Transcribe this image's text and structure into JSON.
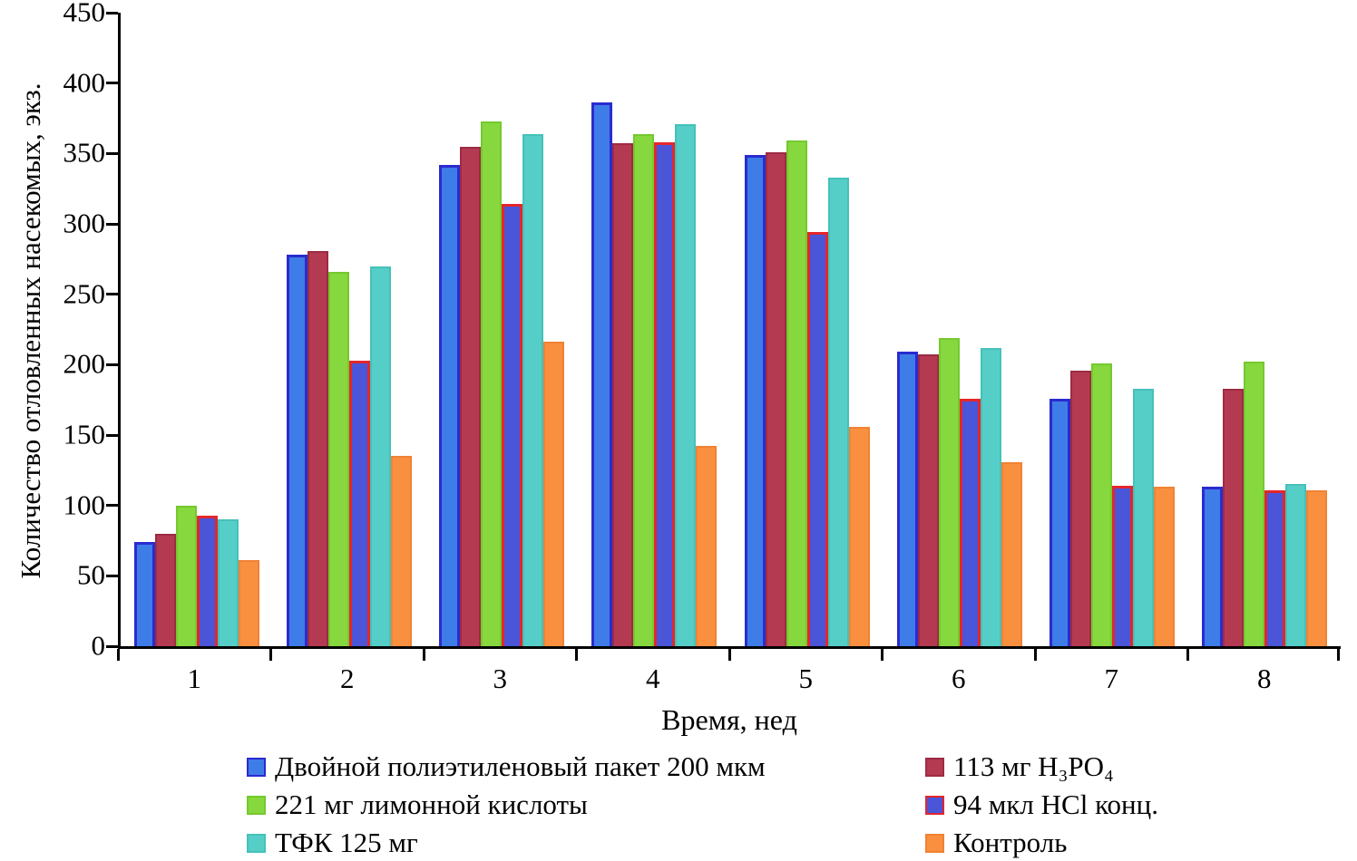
{
  "chart_data": {
    "type": "bar",
    "title": "",
    "xlabel": "Время, нед",
    "ylabel": "Количество отловленных насекомых, экз.",
    "categories": [
      "1",
      "2",
      "3",
      "4",
      "5",
      "6",
      "7",
      "8"
    ],
    "series": [
      {
        "name": "Двойной полиэтиленовый пакет 200 мкм",
        "fill": "#3E7CE8",
        "stroke": "#2B2BCF",
        "stroke_width": 3,
        "values": [
          74,
          278,
          342,
          386,
          349,
          209,
          176,
          113
        ]
      },
      {
        "name": "113 мг H₃PO₄",
        "fill": "#B43A52",
        "stroke": "#9C2C42",
        "stroke_width": 2,
        "values": [
          80,
          281,
          355,
          357,
          351,
          207,
          196,
          183
        ]
      },
      {
        "name": "221 мг лимонной кислоты",
        "fill": "#86D83E",
        "stroke": "#74C92E",
        "stroke_width": 2,
        "values": [
          100,
          266,
          373,
          364,
          359,
          219,
          201,
          202
        ]
      },
      {
        "name": "94 мкл HCl конц.",
        "fill": "#4A55D8",
        "stroke": "#E3262A",
        "stroke_width": 3,
        "values": [
          93,
          203,
          314,
          358,
          294,
          176,
          114,
          111
        ]
      },
      {
        "name": "ТФК 125 мг",
        "fill": "#54CEC6",
        "stroke": "#46C1B9",
        "stroke_width": 2,
        "values": [
          90,
          270,
          364,
          371,
          333,
          212,
          183,
          115
        ]
      },
      {
        "name": "Контроль",
        "fill": "#F9903F",
        "stroke": "#F08234",
        "stroke_width": 2,
        "values": [
          61,
          135,
          216,
          142,
          156,
          131,
          113,
          111
        ]
      }
    ],
    "ylim": [
      0,
      450
    ],
    "yticks": [
      0,
      50,
      100,
      150,
      200,
      250,
      300,
      350,
      400,
      450
    ],
    "grid": false,
    "legend_position": "bottom"
  }
}
